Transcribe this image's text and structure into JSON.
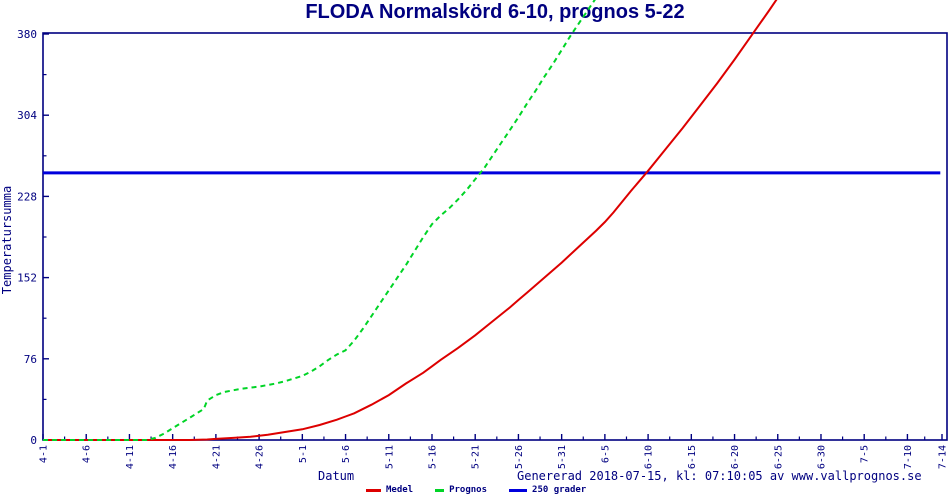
{
  "title": "FLODA Normalskörd 6-10, prognos 5-22",
  "footer": {
    "generated": "Genererad 2018-07-15, kl: 07:10:05 av www.vallprognos.se"
  },
  "legend": {
    "medel_label": "Medel",
    "prognos_label": "Prognos",
    "grader_label": "250 grader"
  },
  "colors": {
    "navy_text": "#000080",
    "medel_red": "#dd0000",
    "prognos_green": "#00d426",
    "grader_blue": "#0000dd",
    "background": "#ffffff"
  },
  "chart_data": {
    "type": "line",
    "title": "FLODA Normalskörd 6-10, prognos 5-22",
    "xlabel": "Datum",
    "ylabel": "Temperatursumma",
    "x_unit": "date (month-day), plotted as days after 4-1",
    "ylim": [
      0,
      380
    ],
    "grid": false,
    "legend_position": "bottom-center",
    "yticks": [
      0,
      76,
      152,
      228,
      304,
      380
    ],
    "xticks": [
      {
        "label": "4-1",
        "day": 0
      },
      {
        "label": "4-6",
        "day": 5
      },
      {
        "label": "4-11",
        "day": 10
      },
      {
        "label": "4-16",
        "day": 15
      },
      {
        "label": "4-21",
        "day": 20
      },
      {
        "label": "4-26",
        "day": 25
      },
      {
        "label": "5-1",
        "day": 30
      },
      {
        "label": "5-6",
        "day": 35
      },
      {
        "label": "5-11",
        "day": 40
      },
      {
        "label": "5-16",
        "day": 45
      },
      {
        "label": "5-21",
        "day": 50
      },
      {
        "label": "5-26",
        "day": 55
      },
      {
        "label": "5-31",
        "day": 60
      },
      {
        "label": "6-5",
        "day": 65
      },
      {
        "label": "6-10",
        "day": 70
      },
      {
        "label": "6-15",
        "day": 75
      },
      {
        "label": "6-20",
        "day": 80
      },
      {
        "label": "6-25",
        "day": 85
      },
      {
        "label": "6-30",
        "day": 90
      },
      {
        "label": "7-5",
        "day": 95
      },
      {
        "label": "7-10",
        "day": 100
      },
      {
        "label": "7-14",
        "day": 104
      }
    ],
    "series": [
      {
        "name": "Medel",
        "color": "#dd0000",
        "style": "solid",
        "width": 2,
        "points": [
          [
            0,
            0
          ],
          [
            5,
            0
          ],
          [
            10,
            0
          ],
          [
            15,
            0
          ],
          [
            17,
            0
          ],
          [
            19,
            0.5
          ],
          [
            20,
            1
          ],
          [
            22,
            2
          ],
          [
            24,
            3
          ],
          [
            25,
            4
          ],
          [
            26,
            5
          ],
          [
            28,
            7.5
          ],
          [
            30,
            10
          ],
          [
            32,
            14
          ],
          [
            34,
            19
          ],
          [
            35,
            22
          ],
          [
            36,
            25
          ],
          [
            38,
            33
          ],
          [
            40,
            42
          ],
          [
            42,
            53
          ],
          [
            44,
            63
          ],
          [
            45,
            69
          ],
          [
            46,
            75
          ],
          [
            48,
            86
          ],
          [
            50,
            98
          ],
          [
            52,
            111
          ],
          [
            54,
            124
          ],
          [
            55,
            131
          ],
          [
            56,
            138
          ],
          [
            58,
            152
          ],
          [
            60,
            166
          ],
          [
            62,
            181
          ],
          [
            64,
            196
          ],
          [
            65,
            204
          ],
          [
            66,
            213
          ],
          [
            68,
            233
          ],
          [
            70,
            252
          ],
          [
            72,
            272
          ],
          [
            74,
            292
          ],
          [
            76,
            313
          ],
          [
            78,
            334
          ],
          [
            80,
            356
          ],
          [
            82,
            379
          ],
          [
            84,
            402
          ],
          [
            85,
            414
          ]
        ]
      },
      {
        "name": "Prognos",
        "color": "#00d426",
        "style": "dashed",
        "width": 2,
        "points": [
          [
            0,
            0
          ],
          [
            5,
            0
          ],
          [
            10,
            0
          ],
          [
            12,
            0
          ],
          [
            13,
            2
          ],
          [
            14,
            6
          ],
          [
            15,
            11
          ],
          [
            16,
            16
          ],
          [
            17,
            21
          ],
          [
            18,
            26
          ],
          [
            18.6,
            29
          ],
          [
            19,
            37
          ],
          [
            20,
            42
          ],
          [
            21,
            45
          ],
          [
            22,
            46.5
          ],
          [
            23,
            48
          ],
          [
            24,
            49
          ],
          [
            25,
            50
          ],
          [
            26,
            51.5
          ],
          [
            27,
            53
          ],
          [
            28,
            55
          ],
          [
            29,
            57.5
          ],
          [
            30,
            60
          ],
          [
            31,
            64
          ],
          [
            32,
            69
          ],
          [
            33,
            75
          ],
          [
            34,
            80
          ],
          [
            35,
            84
          ],
          [
            36,
            93
          ],
          [
            37,
            104
          ],
          [
            38,
            116
          ],
          [
            39,
            128
          ],
          [
            40,
            140
          ],
          [
            41,
            152
          ],
          [
            42,
            164
          ],
          [
            43,
            177
          ],
          [
            44,
            190
          ],
          [
            45,
            202
          ],
          [
            46,
            210
          ],
          [
            47,
            217
          ],
          [
            48,
            225
          ],
          [
            49,
            234
          ],
          [
            50,
            244
          ],
          [
            51,
            254
          ],
          [
            52,
            266
          ],
          [
            53,
            278
          ],
          [
            54,
            290
          ],
          [
            55,
            302
          ],
          [
            56,
            315
          ],
          [
            57,
            327
          ],
          [
            58,
            340
          ],
          [
            59,
            352
          ],
          [
            60,
            365
          ],
          [
            61,
            378
          ],
          [
            62,
            390
          ],
          [
            63,
            402
          ],
          [
            64,
            414
          ]
        ]
      },
      {
        "name": "250 grader",
        "color": "#0000dd",
        "style": "solid",
        "width": 3,
        "points": [
          [
            0,
            250
          ],
          [
            103.8,
            250
          ]
        ]
      }
    ]
  }
}
